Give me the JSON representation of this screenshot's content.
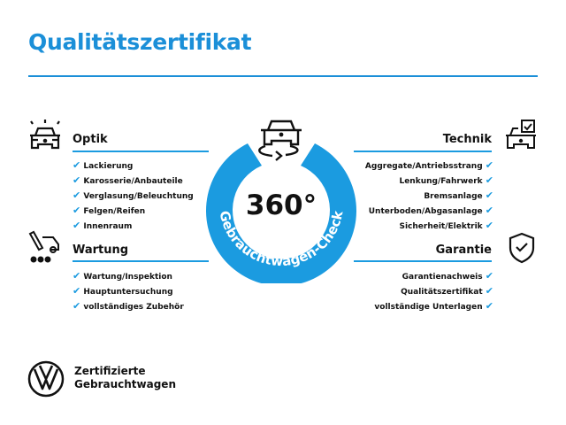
{
  "title": "Qualitätszertifikat",
  "colors": {
    "accent": "#1b9be0",
    "title": "#1b8fd8"
  },
  "badge": {
    "value": "360°",
    "ring_text": "Gebrauchtwagen-Check",
    "icon": "car-rotate-icon"
  },
  "sections": {
    "optik": {
      "heading": "Optik",
      "icon": "car-lights-icon",
      "items": [
        "Lackierung",
        "Karosserie/Anbauteile",
        "Verglasung/Beleuchtung",
        "Felgen/Reifen",
        "Innenraum"
      ]
    },
    "wartung": {
      "heading": "Wartung",
      "icon": "service-car-icon",
      "items": [
        "Wartung/Inspektion",
        "Hauptuntersuchung",
        "vollständiges Zubehör"
      ]
    },
    "technik": {
      "heading": "Technik",
      "icon": "car-checklist-icon",
      "items": [
        "Aggregate/Antriebsstrang",
        "Lenkung/Fahrwerk",
        "Bremsanlage",
        "Unterboden/Abgasanlage",
        "Sicherheit/Elektrik"
      ]
    },
    "garantie": {
      "heading": "Garantie",
      "icon": "shield-check-icon",
      "items": [
        "Garantienachweis",
        "Qualitätszertifikat",
        "vollständige Unterlagen"
      ]
    }
  },
  "check_icon": "checkmark-icon",
  "footer": {
    "line1": "Zertifizierte",
    "line2": "Gebrauchtwagen",
    "logo": "VW"
  }
}
